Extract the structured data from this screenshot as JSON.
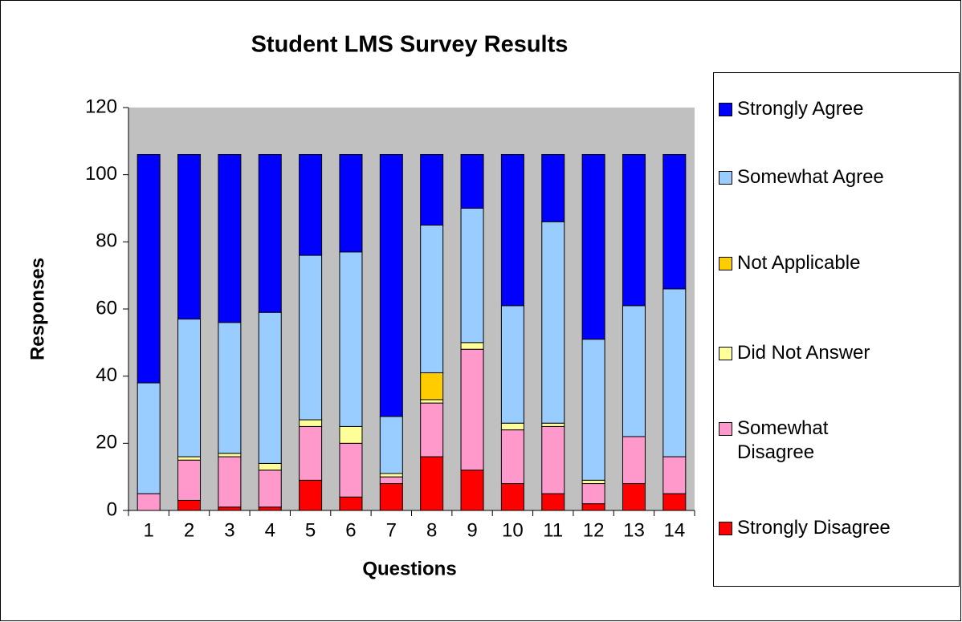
{
  "chart_data": {
    "type": "stacked_bar",
    "title": "Student LMS Survey Results",
    "x_label": "Questions",
    "y_label": "Responses",
    "categories": [
      "1",
      "2",
      "3",
      "4",
      "5",
      "6",
      "7",
      "8",
      "9",
      "10",
      "11",
      "12",
      "13",
      "14"
    ],
    "series": [
      {
        "name": "Strongly Disagree",
        "color": "#ff0000",
        "values": [
          0,
          3,
          1,
          1,
          9,
          4,
          8,
          16,
          12,
          8,
          5,
          2,
          8,
          5
        ]
      },
      {
        "name": "Somewhat Disagree",
        "color": "#ff99cc",
        "values": [
          5,
          12,
          15,
          11,
          16,
          16,
          2,
          16,
          36,
          16,
          20,
          6,
          14,
          11
        ]
      },
      {
        "name": "Did Not Answer",
        "color": "#ffff99",
        "values": [
          0,
          1,
          1,
          2,
          2,
          5,
          1,
          1,
          2,
          2,
          1,
          1,
          0,
          0
        ]
      },
      {
        "name": "Not Applicable",
        "color": "#ffcc00",
        "values": [
          0,
          0,
          0,
          0,
          0,
          0,
          0,
          8,
          0,
          0,
          0,
          0,
          0,
          0
        ]
      },
      {
        "name": "Somewhat Agree",
        "color": "#99ccff",
        "values": [
          33,
          41,
          39,
          45,
          49,
          52,
          17,
          44,
          40,
          35,
          60,
          42,
          39,
          50
        ]
      },
      {
        "name": "Strongly Agree",
        "color": "#0000ff",
        "values": [
          68,
          49,
          50,
          47,
          30,
          29,
          78,
          21,
          16,
          45,
          20,
          55,
          45,
          40
        ]
      }
    ],
    "ylim": [
      0,
      120
    ],
    "yticks": [
      0,
      20,
      40,
      60,
      80,
      100,
      120
    ],
    "legend": "right",
    "plot_background": "#c0c0c0"
  }
}
